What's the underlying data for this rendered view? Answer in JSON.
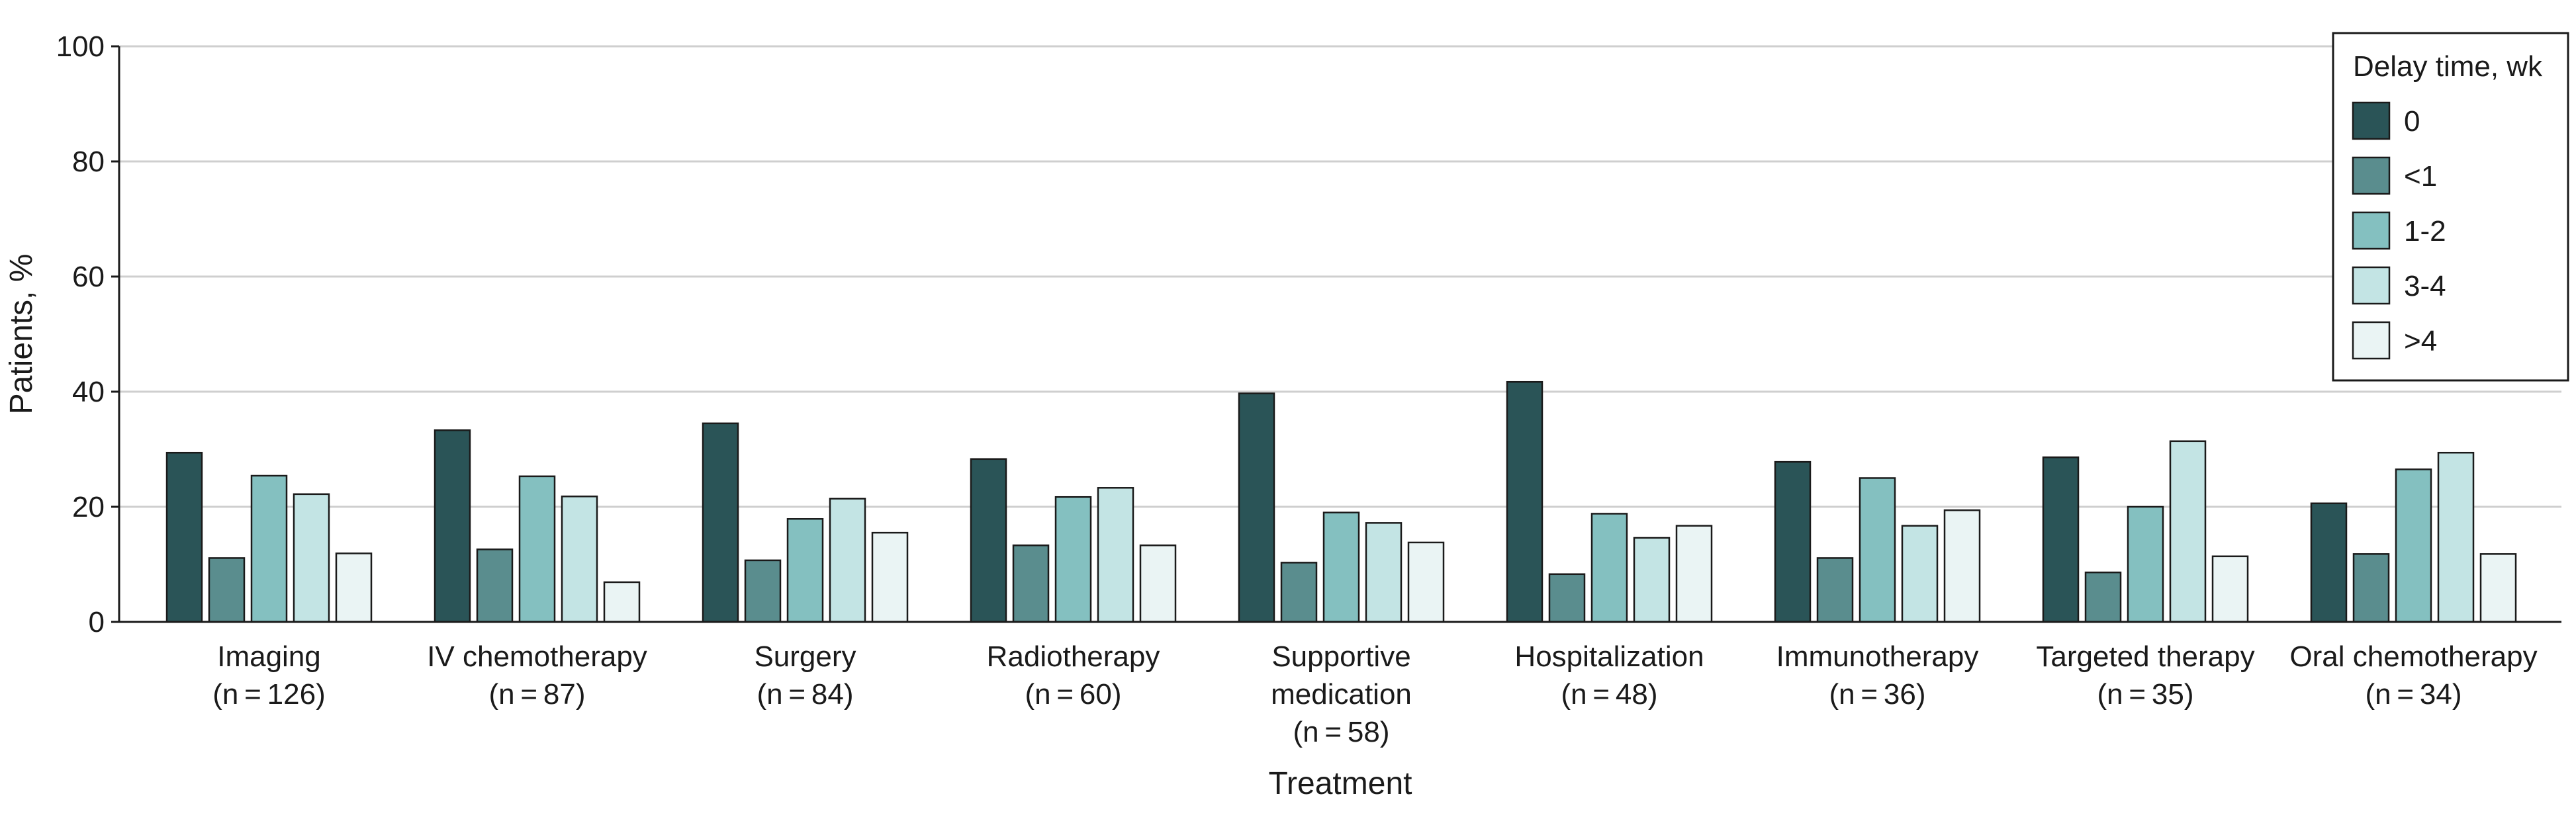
{
  "chart_data": {
    "type": "bar",
    "title": "",
    "xlabel": "Treatment",
    "ylabel": "Patients, %",
    "ylim": [
      0,
      100
    ],
    "yticks": [
      "0",
      "20",
      "40",
      "60",
      "80",
      "100"
    ],
    "legend": {
      "title": "Delay time, wk",
      "position": "top-right"
    },
    "categories": [
      [
        "Imaging",
        "(n = 126)"
      ],
      [
        "IV chemotherapy",
        "(n = 87)"
      ],
      [
        "Surgery",
        "(n = 84)"
      ],
      [
        "Radiotherapy",
        "(n = 60)"
      ],
      [
        "Supportive",
        "medication",
        "(n = 58)"
      ],
      [
        "Hospitalization",
        "(n = 48)"
      ],
      [
        "Immunotherapy",
        "(n = 36)"
      ],
      [
        "Targeted therapy",
        "(n = 35)"
      ],
      [
        "Oral chemotherapy",
        "(n = 34)"
      ]
    ],
    "series": [
      {
        "name": "0",
        "color": "#2a5457",
        "values": [
          29.4,
          33.3,
          34.5,
          28.3,
          39.7,
          41.7,
          27.8,
          28.6,
          20.6
        ]
      },
      {
        "name": "<1",
        "color": "#5a8d8e",
        "values": [
          11.1,
          12.6,
          10.7,
          13.3,
          10.3,
          8.3,
          11.1,
          8.6,
          11.8
        ]
      },
      {
        "name": "1-2",
        "color": "#84c0c0",
        "values": [
          25.4,
          25.3,
          17.9,
          21.7,
          19.0,
          18.8,
          25.0,
          20.0,
          26.5
        ]
      },
      {
        "name": "3-4",
        "color": "#c3e4e4",
        "values": [
          22.2,
          21.8,
          21.4,
          23.3,
          17.2,
          14.6,
          16.7,
          31.4,
          29.4
        ]
      },
      {
        "name": ">4",
        "color": "#eaf4f4",
        "values": [
          11.9,
          6.9,
          15.5,
          13.3,
          13.8,
          16.7,
          19.4,
          11.4,
          11.8
        ]
      }
    ]
  }
}
